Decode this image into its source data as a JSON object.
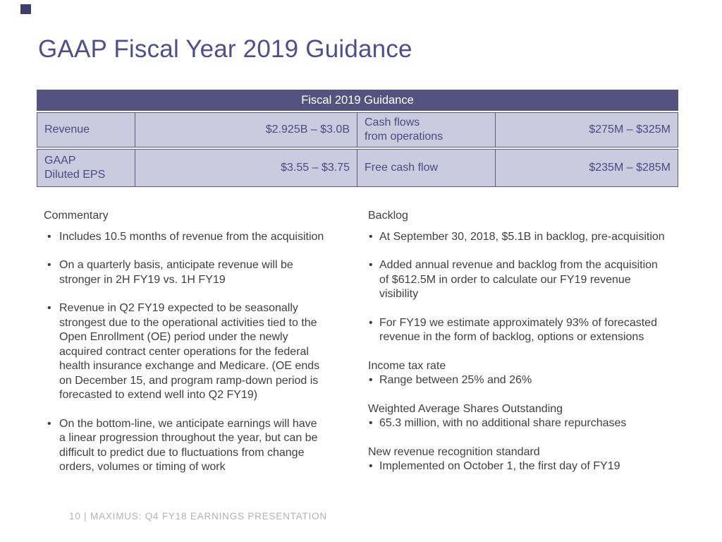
{
  "slide": {
    "title": "GAAP Fiscal Year 2019 Guidance",
    "footer": "10 | MAXIMUS: Q4 FY18 EARNINGS PRESENTATION"
  },
  "guidance_table": {
    "header": "Fiscal 2019 Guidance",
    "rows": [
      {
        "cells": [
          "Revenue",
          "$2.925B – $3.0B",
          "Cash flows\nfrom operations",
          "$275M – $325M"
        ]
      },
      {
        "cells": [
          "GAAP\nDiluted EPS",
          "$3.55 – $3.75",
          "Free cash flow",
          "$235M – $285M"
        ]
      }
    ]
  },
  "commentary": {
    "heading": "Commentary",
    "bullets": [
      "Includes 10.5 months of revenue from the acquisition",
      "On a quarterly basis, anticipate revenue will be\nstronger in 2H FY19 vs. 1H FY19",
      "Revenue in Q2 FY19 expected to be seasonally\nstrongest due to the operational activities tied to the\nOpen Enrollment (OE) period under the newly\nacquired contract center operations for the federal\nhealth insurance exchange and Medicare. (OE ends\non December 15, and program ramp-down period is\nforecasted to extend well into Q2 FY19)",
      "On the bottom-line, we anticipate earnings will have\na linear progression throughout the year, but can be\ndifficult to predict due to fluctuations from change\norders, volumes or timing of work"
    ]
  },
  "backlog": {
    "heading": "Backlog",
    "bullets": [
      "At September 30, 2018, $5.1B in backlog, pre-acquisition",
      "Added annual revenue and backlog from the acquisition\nof $612.5M in order to calculate our FY19 revenue\nvisibility",
      "For FY19 we estimate approximately 93% of forecasted\nrevenue in the form of backlog, options or extensions"
    ]
  },
  "income_tax": {
    "heading": "Income tax rate",
    "bullets": [
      "Range between 25% and 26%"
    ]
  },
  "shares_outstanding": {
    "heading": "Weighted Average Shares Outstanding",
    "bullets": [
      "65.3 million, with no additional share repurchases"
    ]
  },
  "revenue_recognition": {
    "heading": "New revenue recognition standard",
    "bullets": [
      "Implemented on October 1, the first day of FY19"
    ]
  },
  "colors": {
    "title_text": "#4f4f8e",
    "table_header_bg": "#54537f",
    "table_header_text": "#ffffff",
    "table_cell_bg": "#cbcbdf",
    "table_cell_text": "#4a4a82",
    "table_border": "#5b5a86",
    "body_text": "#3f3f3f",
    "footer_text": "#b2b2b2",
    "corner_accent": "#3f3f6b"
  }
}
